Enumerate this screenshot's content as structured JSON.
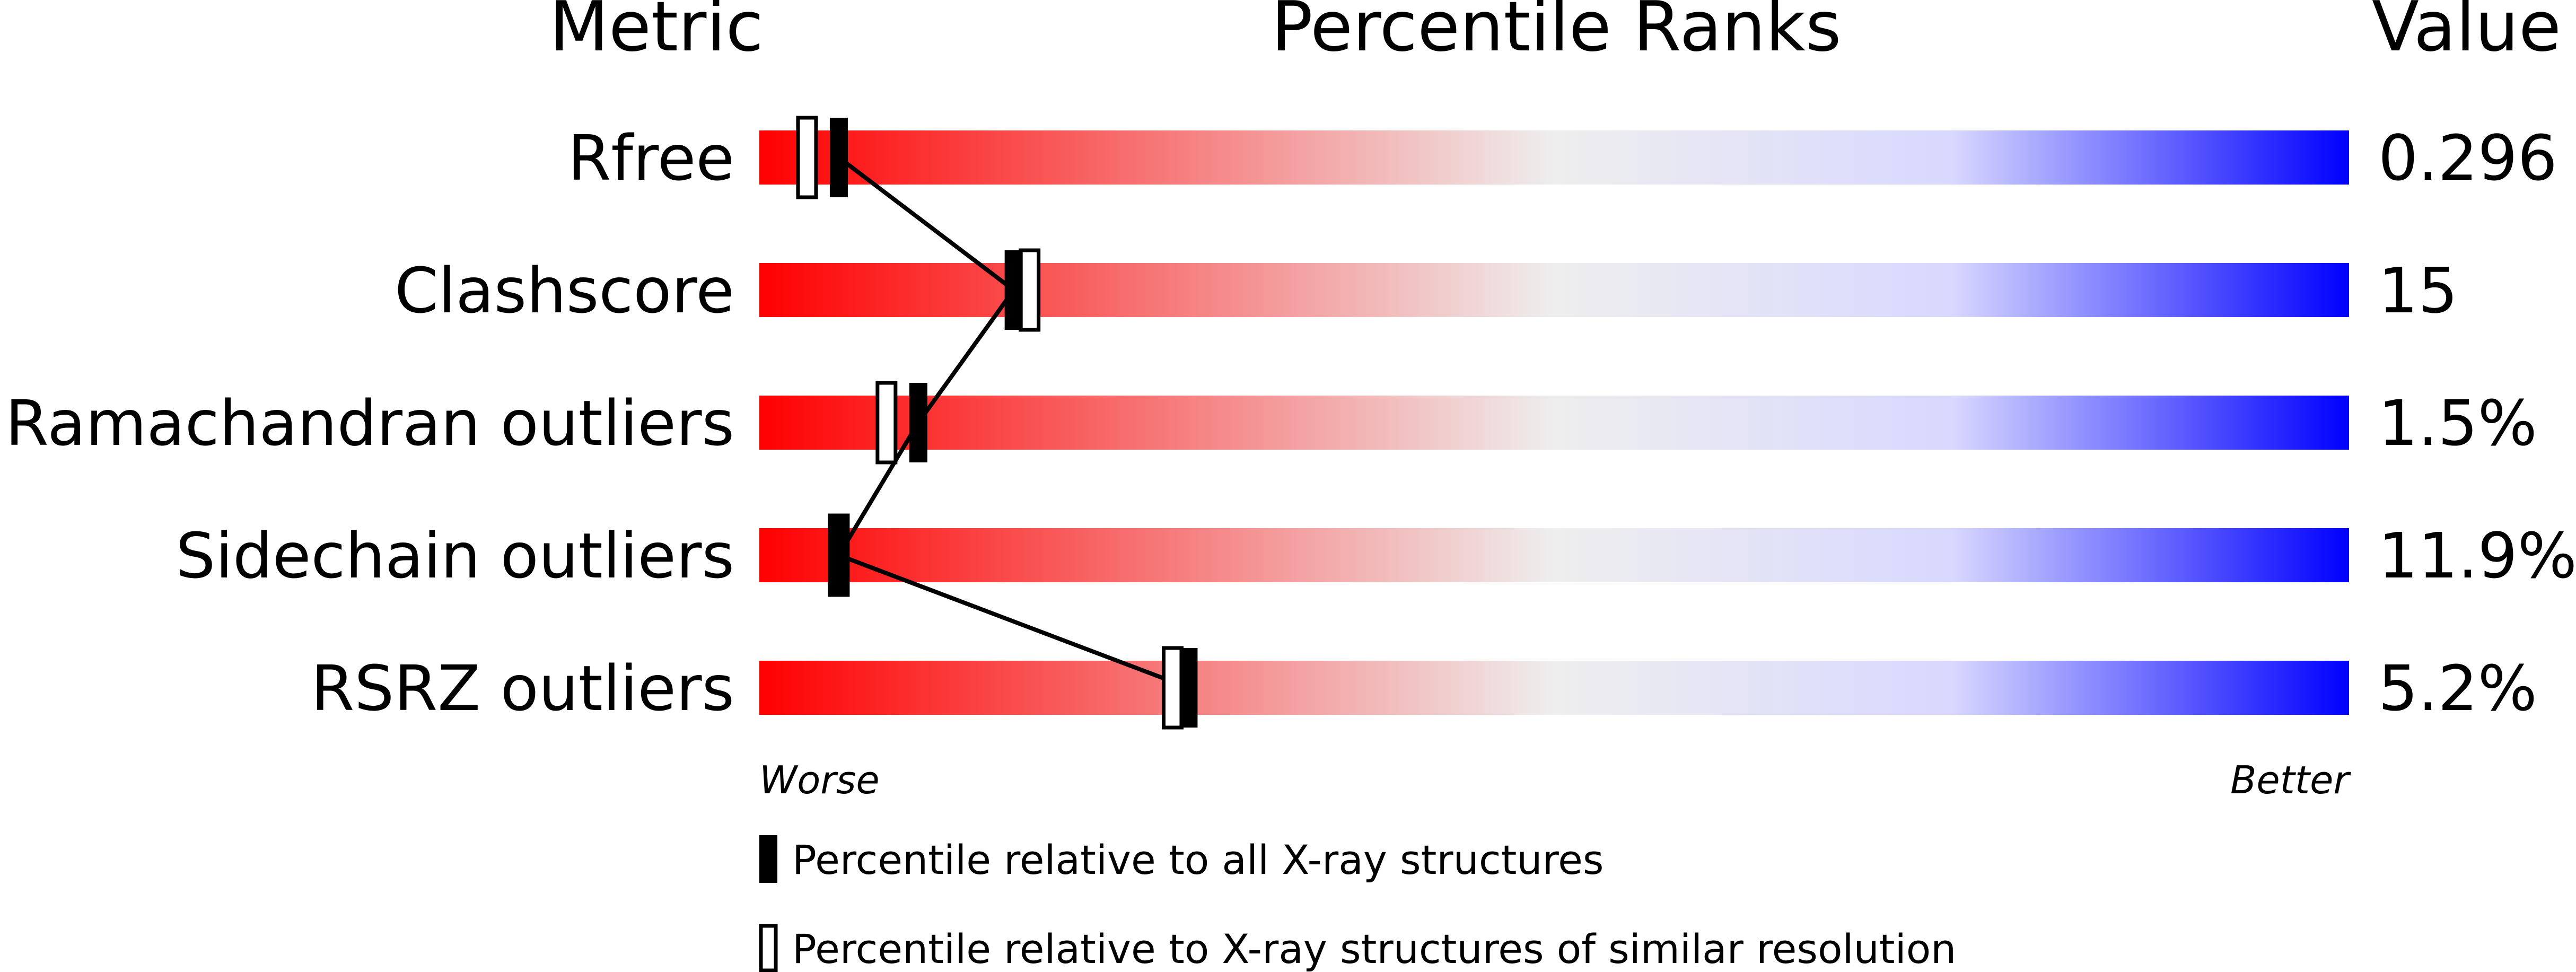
{
  "chart_data": {
    "type": "bar",
    "title": "Percentile Ranks",
    "column_headers": {
      "metric": "Metric",
      "value": "Value"
    },
    "axis": {
      "left_label": "Worse",
      "right_label": "Better",
      "range": [
        0,
        100
      ],
      "gradient_colors": [
        "#ff0000",
        "#eeeeee",
        "#d8d8ff",
        "#0000ff"
      ]
    },
    "metrics": [
      {
        "name": "Rfree",
        "value": "0.296",
        "percentile_all": 5,
        "percentile_similar": 3
      },
      {
        "name": "Clashscore",
        "value": "15",
        "percentile_all": 16,
        "percentile_similar": 17
      },
      {
        "name": "Ramachandran outliers",
        "value": "1.5%",
        "percentile_all": 10,
        "percentile_similar": 8
      },
      {
        "name": "Sidechain outliers",
        "value": "11.9%",
        "percentile_all": 5,
        "percentile_similar": 5
      },
      {
        "name": "RSRZ outliers",
        "value": "5.2%",
        "percentile_all": 27,
        "percentile_similar": 26
      }
    ],
    "legend": [
      {
        "marker": "filled",
        "label": "Percentile relative to all X-ray structures"
      },
      {
        "marker": "open",
        "label": "Percentile relative to X-ray structures of similar resolution"
      }
    ]
  }
}
